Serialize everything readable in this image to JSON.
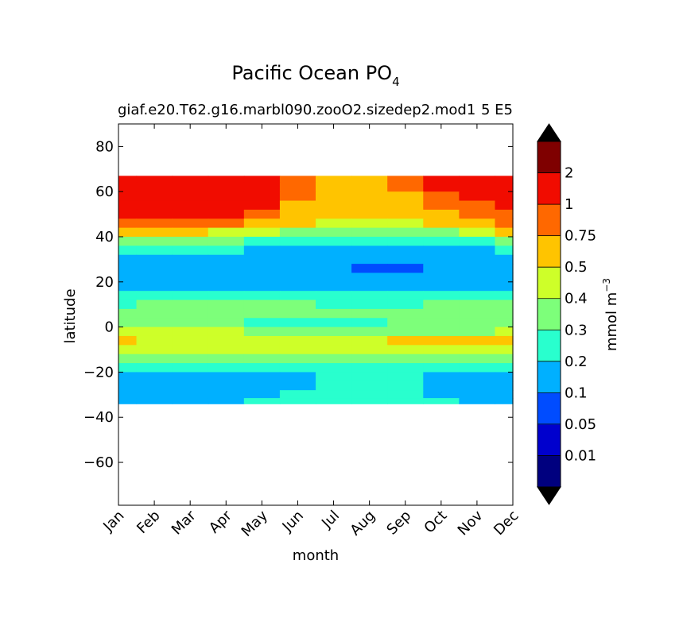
{
  "chart_data": {
    "type": "contour",
    "title": "Pacific Ocean PO",
    "title_subscript": "4",
    "subtitle_left": "giaf.e20.T62.g16.marbl090.zooO2.sizedep2.mod1",
    "subtitle_right": "5 E5",
    "xlabel": "month",
    "ylabel": "latitude",
    "x_categories": [
      "Jan",
      "Feb",
      "Mar",
      "Apr",
      "May",
      "Jun",
      "Jul",
      "Aug",
      "Sep",
      "Oct",
      "Nov",
      "Dec"
    ],
    "y_ticks": [
      80,
      60,
      40,
      20,
      0,
      -20,
      -40,
      -60
    ],
    "ylim": [
      -79,
      90
    ],
    "data_lat_range": [
      -34,
      67
    ],
    "colorbar": {
      "label": "mmol m",
      "label_superscript": "−3",
      "levels": [
        "0.01",
        "0.05",
        "0.1",
        "0.2",
        "0.3",
        "0.4",
        "0.5",
        "0.75",
        "1",
        "2"
      ],
      "bin_colors": [
        "#00007f",
        "#0000cd",
        "#004cff",
        "#00b0ff",
        "#29ffce",
        "#7dff7a",
        "#ceff29",
        "#ffc400",
        "#ff6800",
        "#f10c00",
        "#7f0000"
      ],
      "under_color": "#000000",
      "over_color": "#000000"
    },
    "field": {
      "description_of_values": "bin index into colorbar.bin_colors, sampled on latitude rows (top to bottom) and month columns",
      "latitudes": [
        66,
        62,
        58,
        54,
        50,
        46,
        42,
        38,
        34,
        30,
        26,
        22,
        18,
        14,
        10,
        6,
        2,
        -2,
        -6,
        -10,
        -14,
        -18,
        -22,
        -26,
        -30,
        -33
      ],
      "months": [
        "Jan",
        "Feb",
        "Mar",
        "Apr",
        "May",
        "Jun",
        "Jul",
        "Aug",
        "Sep",
        "Oct",
        "Nov",
        "Dec"
      ],
      "bins": [
        [
          9,
          9,
          9,
          9,
          9,
          8,
          7,
          7,
          8,
          9,
          9,
          9
        ],
        [
          9,
          9,
          9,
          9,
          9,
          8,
          7,
          7,
          8,
          9,
          9,
          9
        ],
        [
          9,
          9,
          9,
          9,
          9,
          8,
          7,
          7,
          7,
          8,
          9,
          9
        ],
        [
          9,
          9,
          9,
          9,
          9,
          7,
          7,
          7,
          7,
          8,
          8,
          9
        ],
        [
          9,
          9,
          9,
          9,
          8,
          7,
          7,
          7,
          7,
          7,
          8,
          8
        ],
        [
          8,
          8,
          8,
          8,
          7,
          7,
          6,
          6,
          6,
          7,
          7,
          8
        ],
        [
          7,
          7,
          7,
          6,
          6,
          5,
          5,
          5,
          5,
          5,
          6,
          7
        ],
        [
          5,
          5,
          5,
          5,
          4,
          4,
          4,
          4,
          4,
          4,
          4,
          5
        ],
        [
          4,
          4,
          4,
          4,
          3,
          3,
          3,
          3,
          3,
          3,
          3,
          4
        ],
        [
          3,
          3,
          3,
          3,
          3,
          3,
          3,
          3,
          3,
          3,
          3,
          3
        ],
        [
          3,
          3,
          3,
          3,
          3,
          3,
          3,
          2,
          2,
          3,
          3,
          3
        ],
        [
          3,
          3,
          3,
          3,
          3,
          3,
          3,
          3,
          3,
          3,
          3,
          3
        ],
        [
          3,
          3,
          3,
          3,
          3,
          3,
          3,
          3,
          3,
          3,
          3,
          3
        ],
        [
          4,
          4,
          4,
          4,
          4,
          4,
          4,
          4,
          4,
          4,
          4,
          4
        ],
        [
          4,
          5,
          5,
          5,
          5,
          5,
          4,
          4,
          4,
          5,
          5,
          5
        ],
        [
          5,
          5,
          5,
          5,
          5,
          5,
          5,
          5,
          5,
          5,
          5,
          5
        ],
        [
          5,
          5,
          5,
          5,
          4,
          4,
          4,
          4,
          5,
          5,
          5,
          5
        ],
        [
          6,
          6,
          6,
          6,
          5,
          5,
          5,
          5,
          5,
          5,
          5,
          6
        ],
        [
          7,
          6,
          6,
          6,
          6,
          6,
          6,
          6,
          7,
          7,
          7,
          7
        ],
        [
          6,
          6,
          6,
          6,
          6,
          6,
          6,
          6,
          6,
          6,
          6,
          6
        ],
        [
          5,
          5,
          5,
          5,
          5,
          5,
          5,
          5,
          5,
          5,
          5,
          5
        ],
        [
          4,
          4,
          4,
          4,
          4,
          4,
          4,
          4,
          4,
          4,
          4,
          4
        ],
        [
          3,
          3,
          3,
          3,
          3,
          3,
          4,
          4,
          4,
          3,
          3,
          3
        ],
        [
          3,
          3,
          3,
          3,
          3,
          3,
          4,
          4,
          4,
          3,
          3,
          3
        ],
        [
          3,
          3,
          3,
          3,
          3,
          4,
          4,
          4,
          4,
          3,
          3,
          3
        ],
        [
          3,
          3,
          3,
          3,
          4,
          4,
          4,
          4,
          4,
          4,
          3,
          3
        ]
      ]
    }
  }
}
